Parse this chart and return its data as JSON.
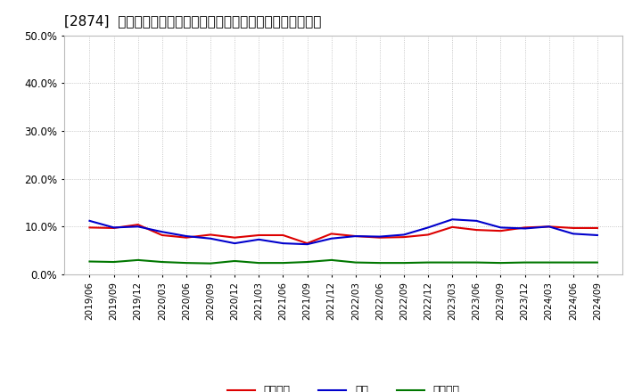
{
  "title": "[2874]  売上債権、在庫、買入債務の総資産に対する比率の推移",
  "x_labels": [
    "2019/06",
    "2019/09",
    "2019/12",
    "2020/03",
    "2020/06",
    "2020/09",
    "2020/12",
    "2021/03",
    "2021/06",
    "2021/09",
    "2021/12",
    "2022/03",
    "2022/06",
    "2022/09",
    "2022/12",
    "2023/03",
    "2023/06",
    "2023/09",
    "2023/12",
    "2024/03",
    "2024/06",
    "2024/09"
  ],
  "売上債権": [
    0.098,
    0.097,
    0.104,
    0.082,
    0.077,
    0.083,
    0.077,
    0.082,
    0.082,
    0.065,
    0.085,
    0.08,
    0.077,
    0.078,
    0.083,
    0.099,
    0.093,
    0.091,
    0.098,
    0.1,
    0.097,
    0.097
  ],
  "在庫": [
    0.112,
    0.098,
    0.1,
    0.089,
    0.08,
    0.075,
    0.065,
    0.073,
    0.065,
    0.063,
    0.075,
    0.08,
    0.079,
    0.083,
    0.098,
    0.115,
    0.112,
    0.098,
    0.096,
    0.1,
    0.085,
    0.082
  ],
  "買入債務": [
    0.027,
    0.026,
    0.03,
    0.026,
    0.024,
    0.023,
    0.028,
    0.024,
    0.024,
    0.026,
    0.03,
    0.025,
    0.024,
    0.024,
    0.025,
    0.025,
    0.025,
    0.024,
    0.025,
    0.025,
    0.025,
    0.025
  ],
  "color_売上債権": "#dd0000",
  "color_在庫": "#0000cc",
  "color_買入債務": "#007700",
  "ylim": [
    0.0,
    0.5
  ],
  "yticks": [
    0.0,
    0.1,
    0.2,
    0.3,
    0.4,
    0.5
  ],
  "background_color": "#ffffff",
  "grid_color": "#999999",
  "legend_labels": [
    "売上債権",
    "在庫",
    "買入債務"
  ]
}
